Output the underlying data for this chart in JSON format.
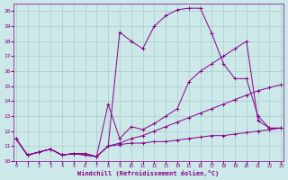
{
  "bg_color": "#cce8e8",
  "grid_color": "#aacccc",
  "line_color": "#880088",
  "xlim_min": -0.2,
  "xlim_max": 23.2,
  "ylim_min": 10.0,
  "ylim_max": 20.5,
  "xticks": [
    0,
    1,
    2,
    3,
    4,
    5,
    6,
    7,
    8,
    9,
    10,
    11,
    12,
    13,
    14,
    15,
    16,
    17,
    18,
    19,
    20,
    21,
    22,
    23
  ],
  "yticks": [
    10,
    11,
    12,
    13,
    14,
    15,
    16,
    17,
    18,
    19,
    20
  ],
  "xlabel": "Windchill (Refroidissement éolien,°C)",
  "lines": [
    [
      11.5,
      10.4,
      10.6,
      10.8,
      10.4,
      10.5,
      10.5,
      10.3,
      11.0,
      11.1,
      11.2,
      11.2,
      11.3,
      11.3,
      11.4,
      11.5,
      11.6,
      11.7,
      11.7,
      11.8,
      11.9,
      12.0,
      12.1,
      12.2
    ],
    [
      11.5,
      10.4,
      10.6,
      10.8,
      10.4,
      10.5,
      10.5,
      10.3,
      11.0,
      11.2,
      11.5,
      11.7,
      12.0,
      12.3,
      12.6,
      12.9,
      13.2,
      13.5,
      13.8,
      14.1,
      14.4,
      14.7,
      14.9,
      15.1
    ],
    [
      11.5,
      10.4,
      10.6,
      10.8,
      10.4,
      10.5,
      10.4,
      10.3,
      13.8,
      11.5,
      12.3,
      12.1,
      12.5,
      13.0,
      13.5,
      15.3,
      16.0,
      16.5,
      17.0,
      17.5,
      18.0,
      12.7,
      12.2,
      12.2
    ],
    [
      11.5,
      10.4,
      10.6,
      10.8,
      10.4,
      10.5,
      10.4,
      10.3,
      11.0,
      18.6,
      18.0,
      17.5,
      19.0,
      19.7,
      20.1,
      20.2,
      20.2,
      18.5,
      16.5,
      15.5,
      15.5,
      13.0,
      12.2,
      12.2
    ]
  ]
}
